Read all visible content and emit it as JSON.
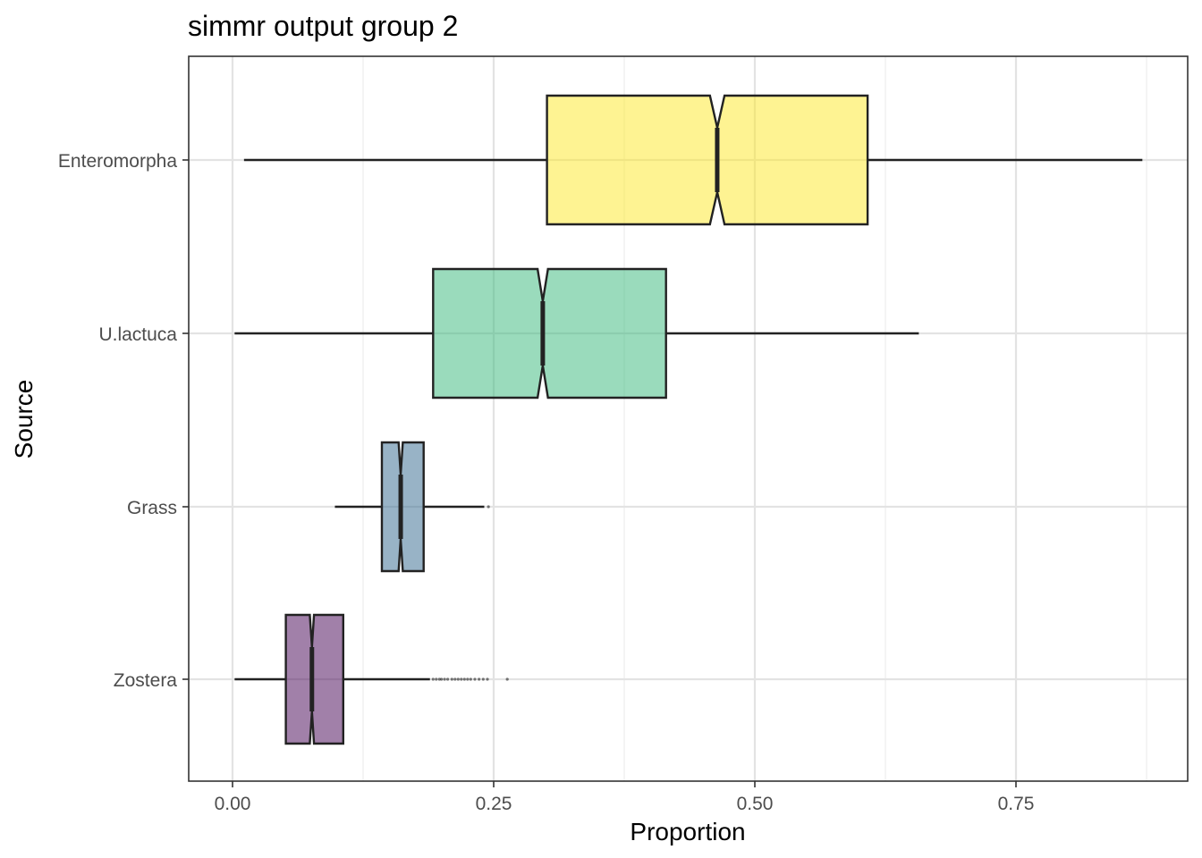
{
  "chart_data": {
    "type": "boxplot",
    "title": "simmr output group 2",
    "xlabel": "Proportion",
    "ylabel": "Source",
    "xlim": [
      -0.04,
      0.92
    ],
    "x_ticks": [
      0.0,
      0.25,
      0.5,
      0.75
    ],
    "x_tick_labels": [
      "0.00",
      "0.25",
      "0.50",
      "0.75"
    ],
    "orientation": "horizontal",
    "notched": true,
    "grid": true,
    "legend": "none",
    "categories": [
      "Enteromorpha",
      "U.lactuca",
      "Grass",
      "Zostera"
    ],
    "boxes": [
      {
        "source": "Enteromorpha",
        "whisker_low": 0.011,
        "q1": 0.301,
        "median": 0.464,
        "q3": 0.608,
        "whisker_high": 0.871,
        "notch_low": 0.457,
        "notch_high": 0.471,
        "outliers": [],
        "color": "#FDE725"
      },
      {
        "source": "U.lactuca",
        "whisker_low": 0.002,
        "q1": 0.192,
        "median": 0.297,
        "q3": 0.415,
        "whisker_high": 0.657,
        "notch_low": 0.292,
        "notch_high": 0.302,
        "outliers": [],
        "color": "#35B779"
      },
      {
        "source": "Grass",
        "whisker_low": 0.098,
        "q1": 0.143,
        "median": 0.161,
        "q3": 0.183,
        "whisker_high": 0.241,
        "notch_low": 0.159,
        "notch_high": 0.163,
        "outliers": [
          0.245
        ],
        "color": "#31688E"
      },
      {
        "source": "Zostera",
        "whisker_low": 0.002,
        "q1": 0.051,
        "median": 0.076,
        "q3": 0.106,
        "whisker_high": 0.189,
        "notch_low": 0.074,
        "notch_high": 0.078,
        "outliers": [
          0.192,
          0.195,
          0.198,
          0.2,
          0.203,
          0.206,
          0.21,
          0.213,
          0.216,
          0.219,
          0.222,
          0.225,
          0.228,
          0.232,
          0.236,
          0.24,
          0.244,
          0.263
        ],
        "color": "#440154"
      }
    ]
  }
}
